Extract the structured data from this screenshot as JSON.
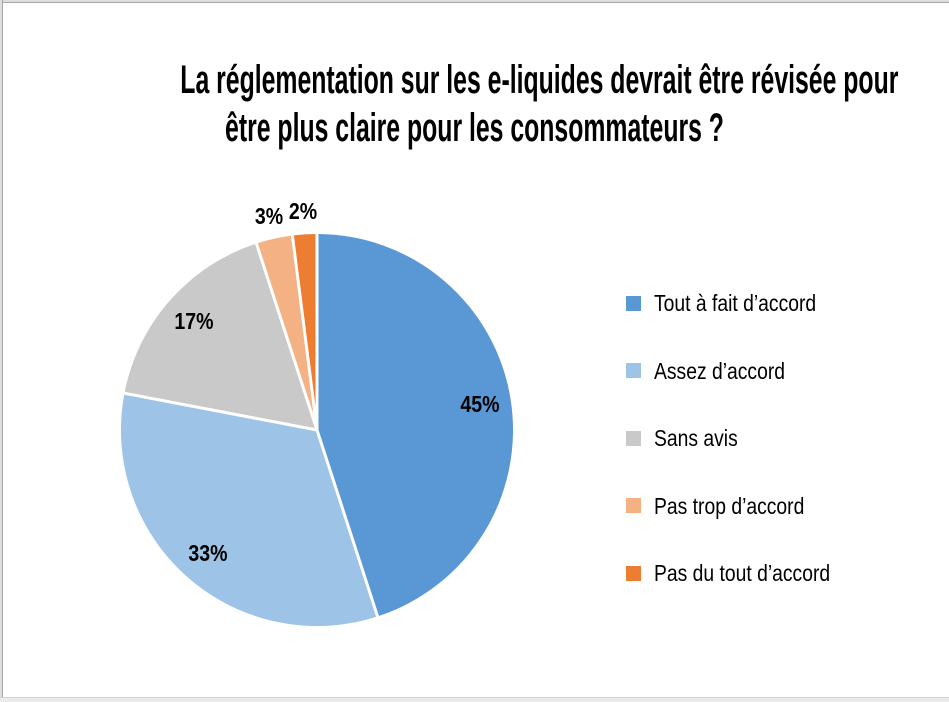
{
  "title": {
    "full": "La réglementation sur les e-liquides devrait être révisée pour être plus claire pour les consommateurs ?",
    "lines": [
      "La réglementation sur les e-liquides devrait être révisée pour",
      "être plus claire pour les consommateurs ?"
    ]
  },
  "chart_data": {
    "type": "pie",
    "title": "La réglementation sur les e-liquides devrait être révisée pour être plus claire pour les consommateurs ?",
    "categories": [
      "Tout à fait d’accord",
      "Assez d’accord",
      "Sans avis",
      "Pas trop d’accord",
      "Pas du tout d’accord"
    ],
    "values": [
      45,
      33,
      17,
      3,
      2
    ],
    "labels": [
      "45%",
      "33%",
      "17%",
      "3%",
      "2%"
    ],
    "colors": [
      "#5A97D5",
      "#9DC3E6",
      "#C9C9C9",
      "#F4B183",
      "#ED7D31"
    ],
    "label_placement": [
      "inside",
      "inside",
      "inside",
      "outside",
      "outside"
    ],
    "start_angle_deg": 0,
    "direction": "clockwise",
    "slice_border_color": "#FFFFFF",
    "legend_position": "right",
    "legend_marker_shape": "square"
  }
}
